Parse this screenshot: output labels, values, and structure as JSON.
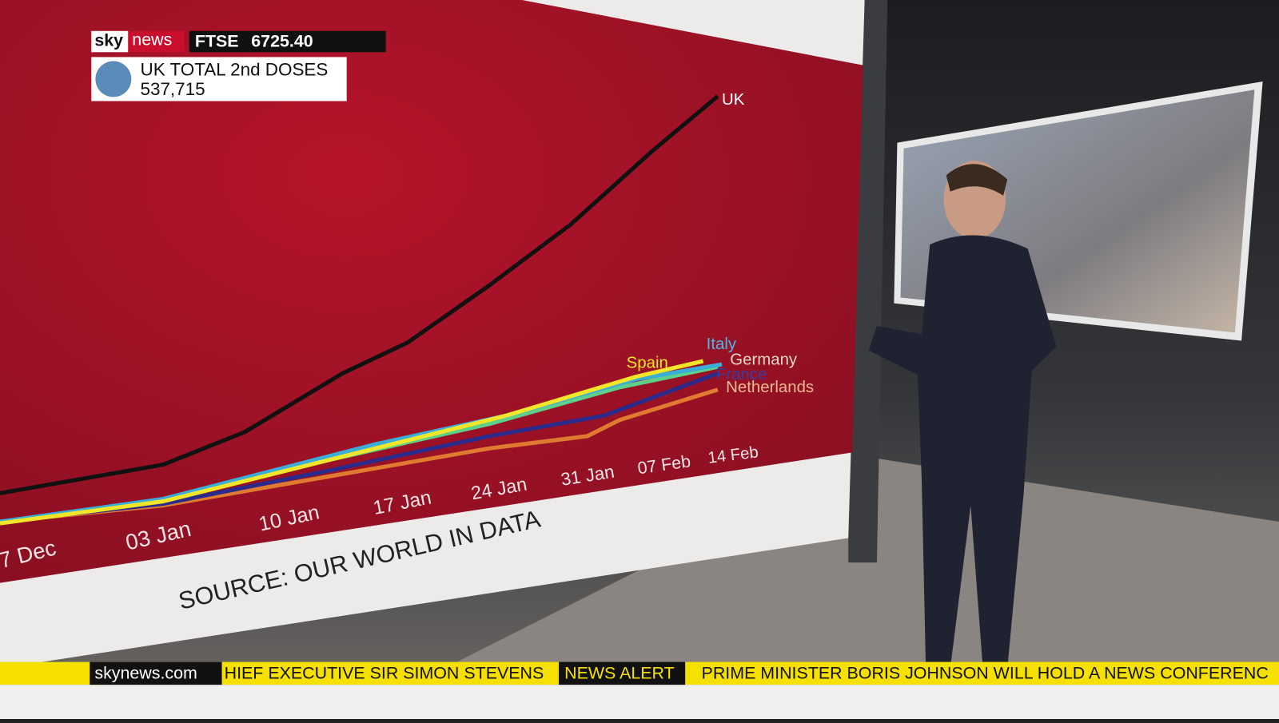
{
  "overlay": {
    "brand_sky": "sky",
    "brand_news": "news",
    "ftse_label": "FTSE",
    "ftse_value": "6725.40",
    "stat_title": "UK TOTAL 2nd DOSES",
    "stat_value": "537,715"
  },
  "screen": {
    "series_labels": [
      "UK",
      "Spain",
      "Italy",
      "Germany",
      "France",
      "Netherlands"
    ],
    "x_labels": [
      "7 Dec",
      "03 Jan",
      "10 Jan",
      "17 Jan",
      "24 Jan",
      "31 Jan",
      "07 Feb",
      "14 Feb"
    ],
    "source": "SOURCE: OUR WORLD IN DATA"
  },
  "ticker": {
    "site": "skynews.com",
    "story": "HIEF EXECUTIVE SIR SIMON STEVENS",
    "alert": "NEWS ALERT",
    "headline": "PRIME MINISTER BORIS JOHNSON WILL HOLD A NEWS CONFERENC"
  }
}
